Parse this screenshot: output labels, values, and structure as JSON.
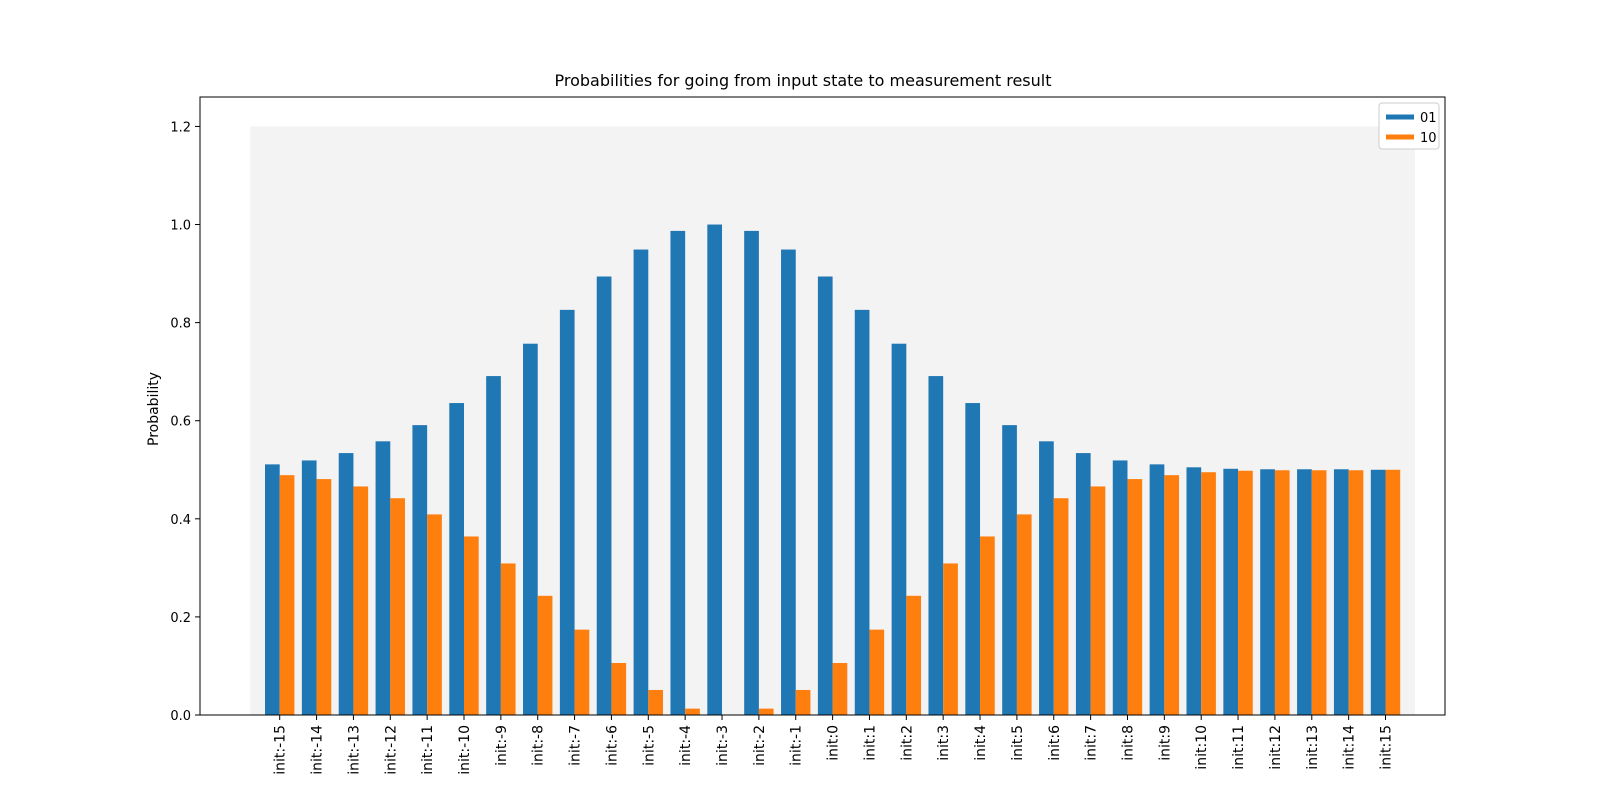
{
  "chart_data": {
    "type": "bar",
    "title": "Probabilities for going from input state to measurement result",
    "xlabel": "",
    "ylabel": "Probability",
    "ylim": [
      0,
      1.26
    ],
    "yticks": [
      "0.0",
      "0.2",
      "0.4",
      "0.6",
      "0.8",
      "1.0",
      "1.2"
    ],
    "grid": false,
    "legend_position": "top-right",
    "background_band_value": 1.2,
    "background_band_color": "#f3f3f3",
    "categories": [
      "init:-15",
      "init:-14",
      "init:-13",
      "init:-12",
      "init:-11",
      "init:-10",
      "init:-9",
      "init:-8",
      "init:-7",
      "init:-6",
      "init:-5",
      "init:-4",
      "init:-3",
      "init:-2",
      "init:-1",
      "init:0",
      "init:1",
      "init:2",
      "init:3",
      "init:4",
      "init:5",
      "init:6",
      "init:7",
      "init:8",
      "init:9",
      "init:10",
      "init:11",
      "init:12",
      "init:13",
      "init:14",
      "init:15"
    ],
    "series": [
      {
        "name": "01",
        "color": "#1f77b4",
        "values": [
          0.511,
          0.519,
          0.534,
          0.558,
          0.591,
          0.636,
          0.691,
          0.757,
          0.826,
          0.894,
          0.949,
          0.987,
          1.0,
          0.987,
          0.949,
          0.894,
          0.826,
          0.757,
          0.691,
          0.636,
          0.591,
          0.558,
          0.534,
          0.519,
          0.511,
          0.505,
          0.502,
          0.501,
          0.501,
          0.501,
          0.5
        ]
      },
      {
        "name": "10",
        "color": "#ff7f0e",
        "values": [
          0.489,
          0.481,
          0.466,
          0.442,
          0.409,
          0.364,
          0.309,
          0.243,
          0.174,
          0.106,
          0.051,
          0.013,
          0.0,
          0.013,
          0.051,
          0.106,
          0.174,
          0.243,
          0.309,
          0.364,
          0.409,
          0.442,
          0.466,
          0.481,
          0.489,
          0.495,
          0.498,
          0.499,
          0.499,
          0.499,
          0.5
        ]
      }
    ]
  }
}
